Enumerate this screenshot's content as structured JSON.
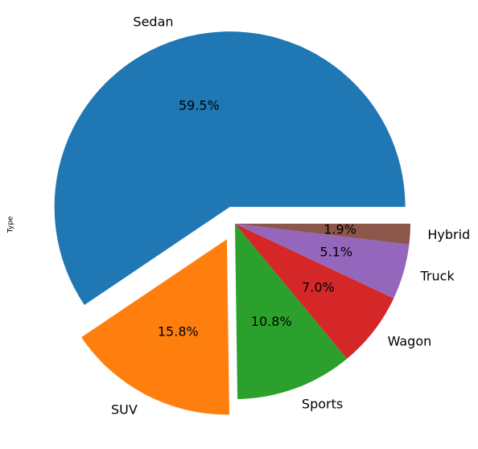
{
  "chart_data": {
    "type": "pie",
    "ylabel": "Type",
    "categories": [
      "Sedan",
      "SUV",
      "Sports",
      "Wagon",
      "Truck",
      "Hybrid"
    ],
    "values": [
      59.5,
      15.8,
      10.8,
      7.0,
      5.1,
      1.9
    ],
    "value_labels": [
      "59.5%",
      "15.8%",
      "10.8%",
      "7.0%",
      "5.1%",
      "1.9%"
    ],
    "colors": [
      "#1f77b4",
      "#ff7f0e",
      "#2ca02c",
      "#d62728",
      "#9467bd",
      "#8c564b"
    ],
    "explode": [
      0.1,
      0.1,
      0,
      0,
      0,
      0
    ],
    "start_angle_deg": 0,
    "direction": "counterclockwise",
    "legend": "none"
  }
}
